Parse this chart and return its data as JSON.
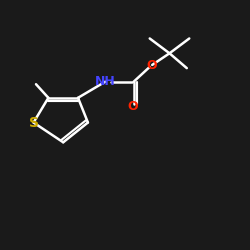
{
  "bg_color": "#1a1a1a",
  "atom_colors": {
    "C": "#ffffff",
    "N": "#4444ff",
    "O": "#ff2200",
    "S": "#ccaa00",
    "H": "#ffffff"
  },
  "bond_color": "#ffffff",
  "bond_width": 1.8,
  "font_size_atom": 9,
  "font_size_small": 7.5
}
